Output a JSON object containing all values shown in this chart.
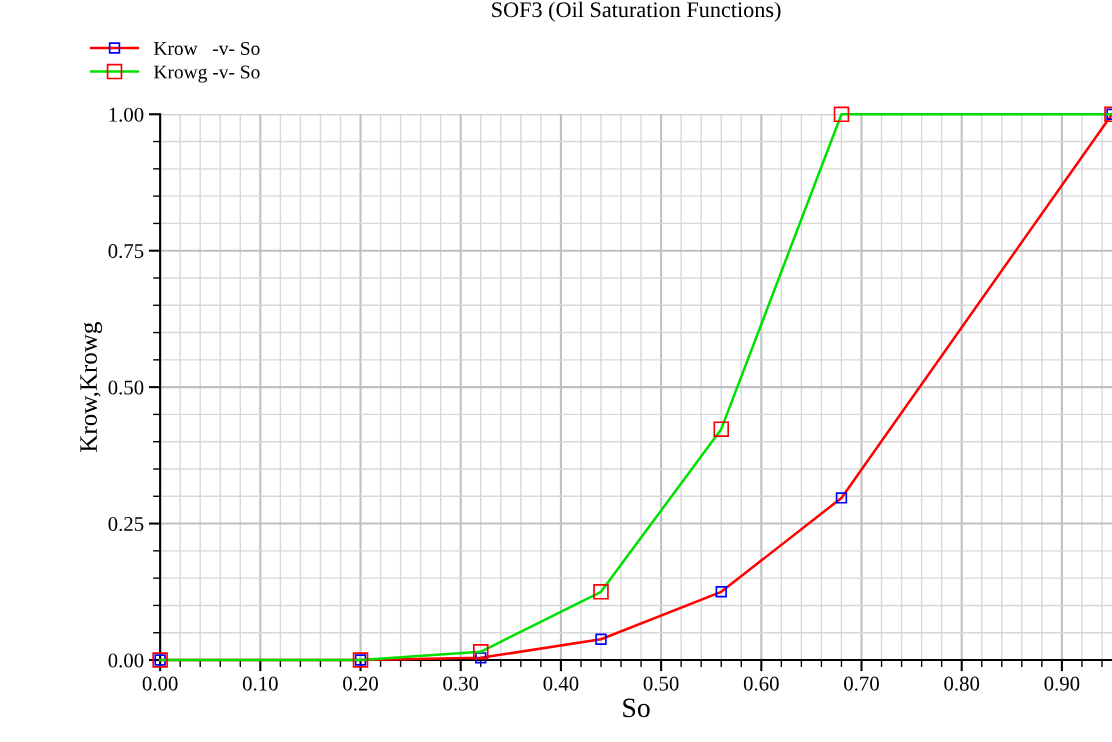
{
  "chart_data": {
    "type": "line",
    "title": "SOF3 (Oil Saturation Functions)",
    "xlabel": "So",
    "ylabel": "Krow,Krowg",
    "x": [
      0,
      0.2,
      0.32,
      0.44,
      0.56,
      0.68,
      0.95
    ],
    "series": [
      {
        "name": "Krow   -v- So",
        "color": "#ff0000",
        "values": [
          0,
          0,
          0.004,
          0.038,
          0.125,
          0.297,
          1.0
        ]
      },
      {
        "name": "Krowg -v- So",
        "color": "#00e000",
        "values": [
          0,
          0,
          0.015,
          0.125,
          0.423,
          1.0,
          1.0
        ]
      }
    ],
    "xlim": [
      0,
      0.95
    ],
    "ylim": [
      0,
      1
    ],
    "xticks": [
      {
        "value": 0,
        "label": "0.00"
      },
      {
        "value": 0.1,
        "label": "0.10"
      },
      {
        "value": 0.2,
        "label": "0.20"
      },
      {
        "value": 0.3,
        "label": "0.30"
      },
      {
        "value": 0.4,
        "label": "0.40"
      },
      {
        "value": 0.5,
        "label": "0.50"
      },
      {
        "value": 0.6,
        "label": "0.60"
      },
      {
        "value": 0.7,
        "label": "0.70"
      },
      {
        "value": 0.8,
        "label": "0.80"
      },
      {
        "value": 0.9,
        "label": "0.90"
      }
    ],
    "yticks": [
      {
        "value": 0,
        "label": "0.00"
      },
      {
        "value": 0.25,
        "label": "0.25"
      },
      {
        "value": 0.5,
        "label": "0.50"
      },
      {
        "value": 0.75,
        "label": "0.75"
      },
      {
        "value": 1,
        "label": "1.00"
      }
    ],
    "grid": true,
    "legend": "top left",
    "marker": "square",
    "line_style": "solid"
  }
}
